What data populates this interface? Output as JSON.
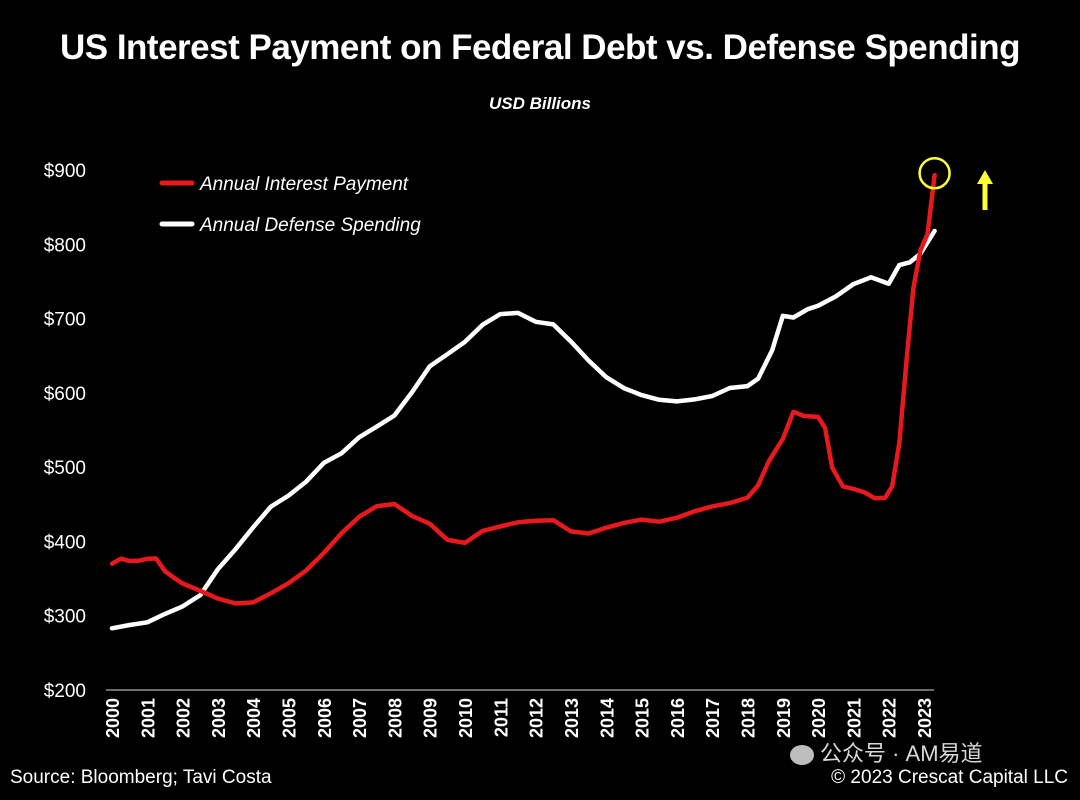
{
  "title": "US Interest Payment on Federal Debt vs. Defense Spending",
  "subtitle": "USD Billions",
  "source": "Source: Bloomberg; Tavi Costa",
  "copyright": "© 2023 Crescat Capital LLC",
  "watermark": "公众号 · AM易道",
  "colors": {
    "interest": "#e8191c",
    "defense": "#ffffff",
    "highlight": "#ffff33",
    "background": "#000000"
  },
  "chart_data": {
    "type": "line",
    "title": "US Interest Payment on Federal Debt vs. Defense Spending",
    "subtitle": "USD Billions",
    "y_ticks": [
      "$200",
      "$300",
      "$400",
      "$500",
      "$600",
      "$700",
      "$800",
      "$900"
    ],
    "x_ticks": [
      "2000",
      "2001",
      "2002",
      "2003",
      "2004",
      "2005",
      "2006",
      "2007",
      "2008",
      "2009",
      "2010",
      "2011",
      "2012",
      "2013",
      "2014",
      "2015",
      "2016",
      "2017",
      "2018",
      "2019",
      "2020",
      "2021",
      "2022",
      "2023"
    ],
    "ylim": [
      200,
      900
    ],
    "xlim": [
      2000,
      2023.5
    ],
    "grid": false,
    "legend_position": "top-left",
    "series": [
      {
        "name": "Annual Interest Payment",
        "color": "#e8191c",
        "points": [
          [
            2000.0,
            370
          ],
          [
            2000.25,
            378
          ],
          [
            2000.5,
            374
          ],
          [
            2000.75,
            376
          ],
          [
            2001.0,
            377
          ],
          [
            2001.25,
            375
          ],
          [
            2001.5,
            362
          ],
          [
            2001.75,
            350
          ],
          [
            2002.0,
            341
          ],
          [
            2002.5,
            333
          ],
          [
            2003.0,
            322
          ],
          [
            2003.5,
            318
          ],
          [
            2004.0,
            320
          ],
          [
            2004.5,
            328
          ],
          [
            2005.0,
            345
          ],
          [
            2005.5,
            362
          ],
          [
            2006.0,
            382
          ],
          [
            2006.5,
            410
          ],
          [
            2007.0,
            432
          ],
          [
            2007.5,
            448
          ],
          [
            2008.0,
            453
          ],
          [
            2008.5,
            432
          ],
          [
            2009.0,
            422
          ],
          [
            2009.5,
            400
          ],
          [
            2010.0,
            398
          ],
          [
            2010.5,
            412
          ],
          [
            2011.0,
            418
          ],
          [
            2011.5,
            428
          ],
          [
            2012.0,
            430
          ],
          [
            2012.5,
            428
          ],
          [
            2013.0,
            415
          ],
          [
            2013.5,
            413
          ],
          [
            2014.0,
            418
          ],
          [
            2014.5,
            425
          ],
          [
            2015.0,
            430
          ],
          [
            2015.5,
            427
          ],
          [
            2016.0,
            432
          ],
          [
            2016.5,
            440
          ],
          [
            2017.0,
            446
          ],
          [
            2017.5,
            450
          ],
          [
            2018.0,
            460
          ],
          [
            2018.3,
            478
          ],
          [
            2018.6,
            505
          ],
          [
            2019.0,
            540
          ],
          [
            2019.3,
            572
          ],
          [
            2019.6,
            568
          ],
          [
            2020.0,
            567
          ],
          [
            2020.2,
            555
          ],
          [
            2020.4,
            500
          ],
          [
            2020.7,
            475
          ],
          [
            2021.0,
            468
          ],
          [
            2021.3,
            465
          ],
          [
            2021.6,
            456
          ],
          [
            2021.9,
            460
          ],
          [
            2022.1,
            475
          ],
          [
            2022.3,
            530
          ],
          [
            2022.5,
            640
          ],
          [
            2022.7,
            740
          ],
          [
            2022.9,
            790
          ],
          [
            2023.1,
            815
          ],
          [
            2023.3,
            893
          ]
        ]
      },
      {
        "name": "Annual Defense Spending",
        "color": "#ffffff",
        "points": [
          [
            2000.0,
            283
          ],
          [
            2000.5,
            288
          ],
          [
            2001.0,
            292
          ],
          [
            2001.5,
            300
          ],
          [
            2002.0,
            312
          ],
          [
            2002.5,
            330
          ],
          [
            2003.0,
            360
          ],
          [
            2003.5,
            390
          ],
          [
            2004.0,
            420
          ],
          [
            2004.5,
            446
          ],
          [
            2005.0,
            462
          ],
          [
            2005.5,
            480
          ],
          [
            2006.0,
            505
          ],
          [
            2006.5,
            520
          ],
          [
            2007.0,
            540
          ],
          [
            2007.5,
            555
          ],
          [
            2008.0,
            570
          ],
          [
            2008.5,
            600
          ],
          [
            2009.0,
            635
          ],
          [
            2009.5,
            652
          ],
          [
            2010.0,
            668
          ],
          [
            2010.5,
            690
          ],
          [
            2011.0,
            708
          ],
          [
            2011.5,
            705
          ],
          [
            2012.0,
            695
          ],
          [
            2012.5,
            690
          ],
          [
            2013.0,
            670
          ],
          [
            2013.5,
            643
          ],
          [
            2014.0,
            622
          ],
          [
            2014.5,
            608
          ],
          [
            2015.0,
            598
          ],
          [
            2015.5,
            593
          ],
          [
            2016.0,
            590
          ],
          [
            2016.5,
            592
          ],
          [
            2017.0,
            595
          ],
          [
            2017.5,
            604
          ],
          [
            2018.0,
            610
          ],
          [
            2018.3,
            618
          ],
          [
            2018.7,
            660
          ],
          [
            2019.0,
            702
          ],
          [
            2019.3,
            700
          ],
          [
            2019.7,
            710
          ],
          [
            2020.0,
            718
          ],
          [
            2020.5,
            730
          ],
          [
            2021.0,
            747
          ],
          [
            2021.5,
            755
          ],
          [
            2022.0,
            748
          ],
          [
            2022.3,
            770
          ],
          [
            2022.6,
            778
          ],
          [
            2022.9,
            785
          ],
          [
            2023.1,
            800
          ],
          [
            2023.3,
            818
          ]
        ]
      }
    ],
    "annotations": [
      {
        "type": "circle",
        "x": 2023.3,
        "y": 893,
        "color": "#ffff33"
      },
      {
        "type": "arrow-up",
        "color": "#ffff33"
      }
    ]
  }
}
